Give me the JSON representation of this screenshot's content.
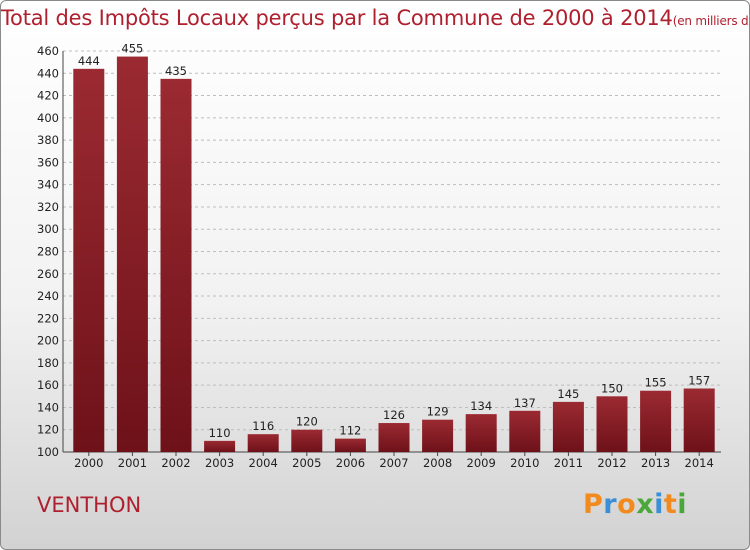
{
  "title": {
    "main": "Total des Impôts Locaux perçus par la Commune de 2000 à 2014",
    "unit": "(en milliers d'€)"
  },
  "commune": "VENTHON",
  "logo": {
    "text": "Proxiti",
    "letters": [
      "P",
      "r",
      "o",
      "x",
      "i",
      "t",
      "i"
    ],
    "colors": [
      "#f28a1e",
      "#3a8fd6",
      "#f28a1e",
      "#4aa83a",
      "#3a8fd6",
      "#f28a1e",
      "#4aa83a"
    ]
  },
  "colors": {
    "bar": "#6e1119",
    "bar_light": "#9b2a32",
    "title": "#b01f2e",
    "grid": "#bdbdbd"
  },
  "chart_data": {
    "type": "bar",
    "title": "Total des Impôts Locaux perçus par la Commune de 2000 à 2014",
    "categories": [
      "2000",
      "2001",
      "2002",
      "2003",
      "2004",
      "2005",
      "2006",
      "2007",
      "2008",
      "2009",
      "2010",
      "2011",
      "2012",
      "2013",
      "2014"
    ],
    "values": [
      444,
      455,
      435,
      110,
      116,
      120,
      112,
      126,
      129,
      134,
      137,
      145,
      150,
      155,
      157
    ],
    "xlabel": "",
    "ylabel": "",
    "ylim": [
      100,
      460
    ],
    "yticks": [
      100,
      120,
      140,
      160,
      180,
      200,
      220,
      240,
      260,
      280,
      300,
      320,
      340,
      360,
      380,
      400,
      420,
      440,
      460
    ],
    "grid": true,
    "legend": "none"
  }
}
